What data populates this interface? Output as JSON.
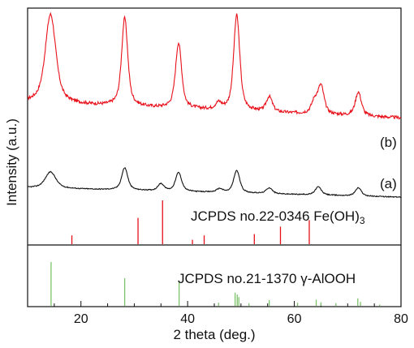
{
  "chart_data": {
    "type": "line",
    "title": "",
    "xlabel": "2 theta (deg.)",
    "ylabel": "Intensity (a.u.)",
    "xlim": [
      10,
      80
    ],
    "x_ticks": [
      20,
      40,
      60,
      80
    ],
    "x_minor_step": 5,
    "grid": false,
    "legend": "none",
    "colors": {
      "curve_b": "#e8101a",
      "curve_a": "#111111",
      "feoh3_ref": "#e8101a",
      "alooh_ref": "#7cc36a"
    },
    "series": [
      {
        "label": "(b)",
        "color": "#e8101a",
        "peaks": [
          [
            14.3,
            0.71
          ],
          [
            28.2,
            0.7
          ],
          [
            38.3,
            0.52
          ],
          [
            49.2,
            0.76
          ],
          [
            55.3,
            0.12
          ],
          [
            65.0,
            0.22
          ],
          [
            72.0,
            0.19
          ],
          [
            45.8,
            0.05
          ],
          [
            63.8,
            0.1
          ]
        ],
        "baseline": 0.15,
        "noise": 0.012
      },
      {
        "label": "(a)",
        "color": "#111111",
        "peaks": [
          [
            14.3,
            0.14
          ],
          [
            28.2,
            0.19
          ],
          [
            35.0,
            0.06
          ],
          [
            38.3,
            0.16
          ],
          [
            49.2,
            0.19
          ],
          [
            55.3,
            0.05
          ],
          [
            64.5,
            0.07
          ],
          [
            72.0,
            0.07
          ],
          [
            46.0,
            0.03
          ]
        ],
        "baseline": 0.1,
        "noise": 0.004
      }
    ],
    "references": [
      {
        "label": "JCPDS no.22-0346 Fe(OH)",
        "subscript": "3",
        "color": "#e8101a",
        "lines": [
          [
            18.3,
            0.2
          ],
          [
            30.7,
            0.6
          ],
          [
            35.3,
            1.0
          ],
          [
            40.9,
            0.1
          ],
          [
            43.1,
            0.2
          ],
          [
            52.5,
            0.23
          ],
          [
            57.4,
            0.4
          ],
          [
            62.8,
            0.55
          ]
        ]
      },
      {
        "label": "JCPDS no.21-1370 γ-AlOOH",
        "color": "#7cc36a",
        "lines": [
          [
            14.4,
            1.0
          ],
          [
            28.2,
            0.63
          ],
          [
            38.4,
            0.54
          ],
          [
            45.8,
            0.07
          ],
          [
            48.9,
            0.3
          ],
          [
            49.3,
            0.26
          ],
          [
            49.6,
            0.2
          ],
          [
            51.5,
            0.06
          ],
          [
            55.3,
            0.13
          ],
          [
            60.6,
            0.07
          ],
          [
            64.1,
            0.14
          ],
          [
            65.0,
            0.08
          ],
          [
            67.8,
            0.06
          ],
          [
            71.9,
            0.17
          ],
          [
            72.4,
            0.09
          ],
          [
            76.0,
            0.03
          ]
        ]
      }
    ]
  }
}
